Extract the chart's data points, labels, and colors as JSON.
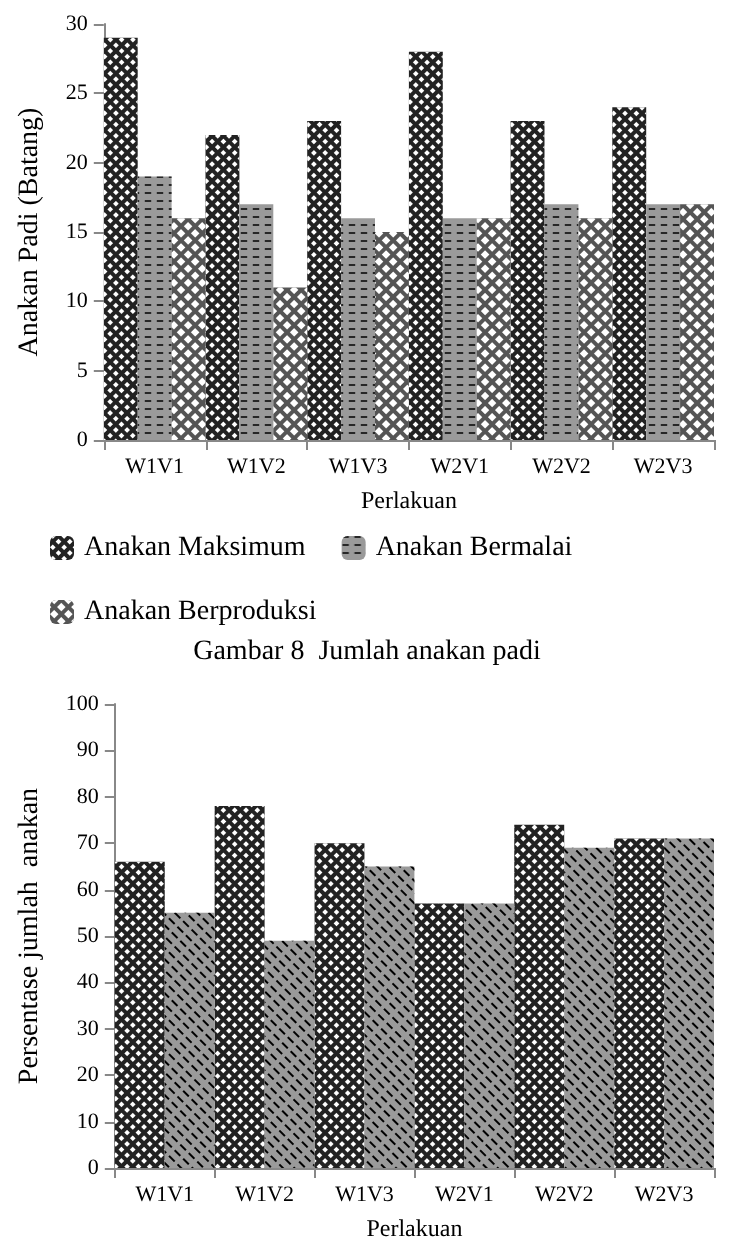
{
  "chart_data": [
    {
      "type": "bar",
      "xlabel": "Perlakuan",
      "ylabel": "Anakan Padi (Batang)",
      "categories": [
        "W1V1",
        "W1V2",
        "W1V3",
        "W2V1",
        "W2V2",
        "W2V3"
      ],
      "series": [
        {
          "name": "Anakan Maksimum",
          "color": "#222222",
          "values": [
            29,
            22,
            23,
            28,
            23,
            24
          ]
        },
        {
          "name": "Anakan Bermalai",
          "color": "#9a9a9a",
          "values": [
            19,
            17,
            16,
            16,
            17,
            17
          ]
        },
        {
          "name": "Anakan Berproduksi",
          "color": "#555555",
          "values": [
            16,
            11,
            15,
            16,
            16,
            17
          ]
        }
      ],
      "ylim": [
        0,
        30
      ],
      "yticks": [
        0,
        5,
        10,
        15,
        20,
        25,
        30
      ],
      "grid": false,
      "legend": "bottom",
      "annotations": [
        "Gambar 8  Jumlah anakan padi"
      ]
    },
    {
      "type": "bar",
      "xlabel": "Perlakuan",
      "ylabel": "Persentase jumlah  anakan",
      "categories": [
        "W1V1",
        "W1V2",
        "W1V3",
        "W2V1",
        "W2V2",
        "W2V3"
      ],
      "series": [
        {
          "color": "#222222",
          "values": [
            66,
            78,
            70,
            57,
            74,
            71
          ]
        },
        {
          "color": "#9a9a9a",
          "values": [
            55,
            49,
            65,
            57,
            69,
            71
          ]
        }
      ],
      "ylim": [
        0,
        100
      ],
      "yticks": [
        0,
        10,
        20,
        30,
        40,
        50,
        60,
        70,
        80,
        90,
        100
      ],
      "grid": false,
      "legend": false
    }
  ]
}
